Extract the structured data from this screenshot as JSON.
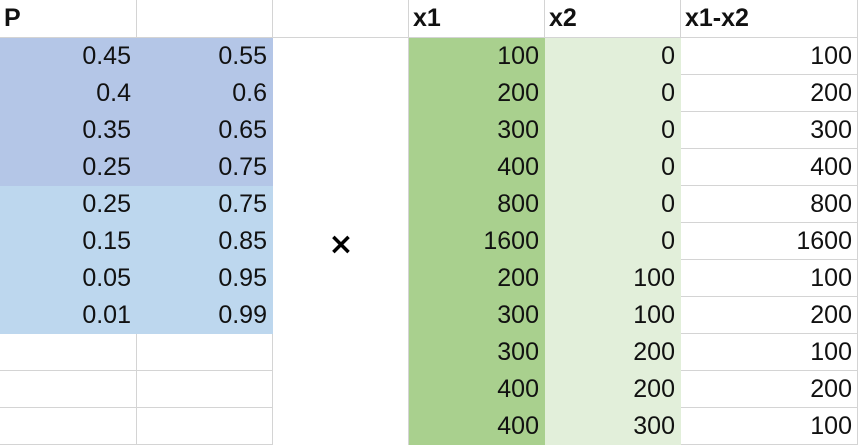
{
  "headers": {
    "p": "P",
    "x1": "x1",
    "x2": "x2",
    "diff": "x1-x2"
  },
  "operator": "×",
  "p_rows": [
    [
      "0.45",
      "0.55"
    ],
    [
      "0.4",
      "0.6"
    ],
    [
      "0.35",
      "0.65"
    ],
    [
      "0.25",
      "0.75"
    ],
    [
      "0.25",
      "0.75"
    ],
    [
      "0.15",
      "0.85"
    ],
    [
      "0.05",
      "0.95"
    ],
    [
      "0.01",
      "0.99"
    ]
  ],
  "x_rows": [
    [
      "100",
      "0",
      "100"
    ],
    [
      "200",
      "0",
      "200"
    ],
    [
      "300",
      "0",
      "300"
    ],
    [
      "400",
      "0",
      "400"
    ],
    [
      "800",
      "0",
      "800"
    ],
    [
      "1600",
      "0",
      "1600"
    ],
    [
      "200",
      "100",
      "100"
    ],
    [
      "300",
      "100",
      "200"
    ],
    [
      "300",
      "200",
      "100"
    ],
    [
      "400",
      "200",
      "200"
    ],
    [
      "400",
      "300",
      "100"
    ]
  ],
  "colors": {
    "p_dark": "#b4c6e7",
    "p_light": "#bdd7ee",
    "x1_fill": "#a9d08e",
    "x2_fill": "#e2efda",
    "gridline": "#d4d4d4"
  }
}
